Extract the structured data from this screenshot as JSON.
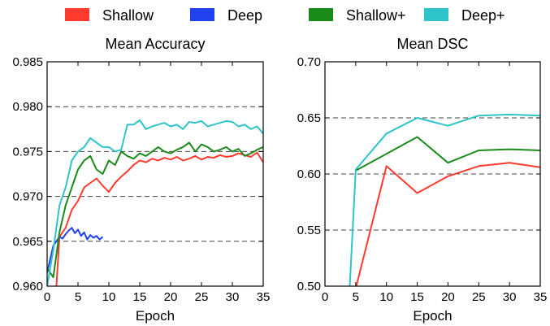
{
  "legend": [
    {
      "name": "Shallow",
      "color": "#ff3b30"
    },
    {
      "name": "Deep",
      "color": "#2141ee"
    },
    {
      "name": "Shallow+",
      "color": "#1a8a1a"
    },
    {
      "name": "Deep+",
      "color": "#2ec4c9"
    }
  ],
  "chart_data": [
    {
      "type": "line",
      "title": "Mean Accuracy",
      "xlabel": "Epoch",
      "ylabel": "",
      "xlim": [
        0,
        35
      ],
      "ylim": [
        0.96,
        0.985
      ],
      "xticks": [
        0,
        5,
        10,
        15,
        20,
        25,
        30,
        35
      ],
      "yticks": [
        0.96,
        0.965,
        0.97,
        0.975,
        0.98,
        0.985
      ],
      "ytick_labels": [
        "0.960",
        "0.965",
        "0.970",
        "0.975",
        "0.980",
        "0.985"
      ],
      "dashed_gridlines_y": [
        0.965,
        0.97,
        0.975,
        0.98
      ],
      "series": [
        {
          "name": "Shallow",
          "color": "#ff3b30",
          "x": [
            1.5,
            2,
            3,
            4,
            5,
            6,
            7,
            8,
            9,
            10,
            11,
            12,
            13,
            14,
            15,
            16,
            17,
            18,
            19,
            20,
            21,
            22,
            23,
            24,
            25,
            26,
            27,
            28,
            29,
            30,
            31,
            32,
            33,
            34,
            35
          ],
          "y": [
            0.96,
            0.9655,
            0.9665,
            0.9685,
            0.9695,
            0.971,
            0.9715,
            0.972,
            0.9712,
            0.9705,
            0.9715,
            0.9722,
            0.9728,
            0.9735,
            0.974,
            0.9738,
            0.9742,
            0.974,
            0.9743,
            0.9741,
            0.9744,
            0.974,
            0.9742,
            0.9745,
            0.9741,
            0.9744,
            0.9743,
            0.9746,
            0.9744,
            0.9745,
            0.9748,
            0.9746,
            0.9744,
            0.9749,
            0.9738
          ]
        },
        {
          "name": "Deep",
          "color": "#2141ee",
          "x": [
            0,
            0.5,
            1,
            1.5,
            2,
            2.5,
            3,
            3.5,
            4,
            4.5,
            5,
            5.5,
            6,
            6.5,
            7,
            7.5,
            8,
            8.5,
            9
          ],
          "y": [
            0.9615,
            0.963,
            0.9645,
            0.965,
            0.9655,
            0.9653,
            0.9658,
            0.9662,
            0.9665,
            0.9659,
            0.9663,
            0.9656,
            0.966,
            0.9652,
            0.9657,
            0.9654,
            0.9656,
            0.9652,
            0.9655
          ]
        },
        {
          "name": "Shallow+",
          "color": "#1a8a1a",
          "x": [
            0,
            1,
            2,
            3,
            4,
            5,
            6,
            7,
            8,
            9,
            10,
            11,
            12,
            13,
            14,
            15,
            16,
            17,
            18,
            19,
            20,
            21,
            22,
            23,
            24,
            25,
            26,
            27,
            28,
            29,
            30,
            31,
            32,
            33,
            34,
            35
          ],
          "y": [
            0.962,
            0.961,
            0.966,
            0.969,
            0.971,
            0.973,
            0.974,
            0.9745,
            0.973,
            0.9725,
            0.974,
            0.9735,
            0.975,
            0.9745,
            0.9742,
            0.9748,
            0.9745,
            0.975,
            0.9755,
            0.975,
            0.9748,
            0.9752,
            0.9755,
            0.976,
            0.975,
            0.9758,
            0.9755,
            0.975,
            0.9752,
            0.9755,
            0.975,
            0.9753,
            0.9745,
            0.9748,
            0.9752,
            0.9755
          ]
        },
        {
          "name": "Deep+",
          "color": "#2ec4c9",
          "x": [
            0,
            1,
            2,
            3,
            4,
            5,
            6,
            7,
            8,
            9,
            10,
            11,
            12,
            13,
            14,
            15,
            16,
            17,
            18,
            19,
            20,
            21,
            22,
            23,
            24,
            25,
            26,
            27,
            28,
            29,
            30,
            31,
            32,
            33,
            34,
            35
          ],
          "y": [
            0.96,
            0.964,
            0.969,
            0.971,
            0.974,
            0.975,
            0.9755,
            0.9765,
            0.976,
            0.9755,
            0.9755,
            0.975,
            0.9752,
            0.978,
            0.978,
            0.9785,
            0.9775,
            0.9778,
            0.978,
            0.9782,
            0.9778,
            0.978,
            0.9775,
            0.9783,
            0.9782,
            0.9784,
            0.9778,
            0.978,
            0.9782,
            0.9784,
            0.9783,
            0.9778,
            0.978,
            0.9775,
            0.9778,
            0.977
          ]
        }
      ]
    },
    {
      "type": "line",
      "title": "Mean DSC",
      "xlabel": "Epoch",
      "ylabel": "",
      "xlim": [
        0,
        35
      ],
      "ylim": [
        0.5,
        0.7
      ],
      "xticks": [
        0,
        5,
        10,
        15,
        20,
        25,
        30,
        35
      ],
      "yticks": [
        0.5,
        0.55,
        0.6,
        0.65,
        0.7
      ],
      "ytick_labels": [
        "0.50",
        "0.55",
        "0.60",
        "0.65",
        "0.70"
      ],
      "dashed_gridlines_y": [
        0.55,
        0.6,
        0.65
      ],
      "series": [
        {
          "name": "Shallow",
          "color": "#ff3b30",
          "x": [
            5,
            10,
            15,
            20,
            25,
            30,
            35
          ],
          "y": [
            0.498,
            0.607,
            0.583,
            0.598,
            0.607,
            0.61,
            0.606
          ]
        },
        {
          "name": "Shallow+",
          "color": "#1a8a1a",
          "x": [
            5,
            10,
            15,
            20,
            25,
            30,
            35
          ],
          "y": [
            0.603,
            0.618,
            0.633,
            0.61,
            0.621,
            0.622,
            0.621
          ]
        },
        {
          "name": "Deep+",
          "color": "#2ec4c9",
          "x": [
            4,
            5,
            10,
            15,
            20,
            25,
            30,
            35
          ],
          "y": [
            0.497,
            0.604,
            0.636,
            0.65,
            0.643,
            0.652,
            0.653,
            0.652
          ]
        }
      ]
    }
  ]
}
